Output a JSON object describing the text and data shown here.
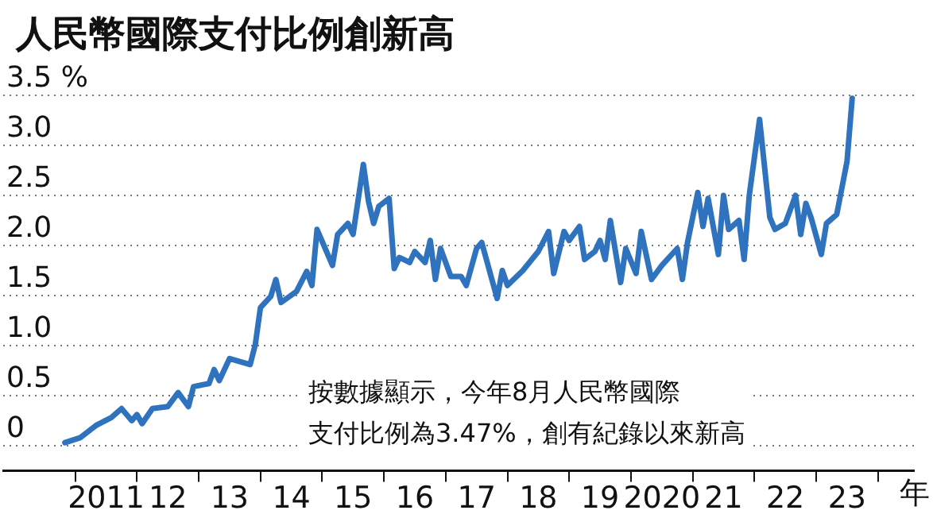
{
  "chart_data": {
    "type": "line",
    "title": "人民幣國際支付比例創新高",
    "xlabel": "年",
    "annotations": [
      "按數據顯示，今年8月人民幣國際",
      "支付比例為3.47%，創有紀錄以來新高"
    ],
    "x": [
      "2010-11",
      "2011-02",
      "2011-05",
      "2011-08",
      "2011-10",
      "2011-12",
      "2012-01",
      "2012-02",
      "2012-04",
      "2012-07",
      "2012-09",
      "2012-11",
      "2012-12",
      "2013-03",
      "2013-04",
      "2013-05",
      "2013-07",
      "2013-09",
      "2013-11",
      "2013-12",
      "2014-01",
      "2014-03",
      "2014-04",
      "2014-05",
      "2014-08",
      "2014-10",
      "2014-11",
      "2014-12",
      "2015-03",
      "2015-04",
      "2015-06",
      "2015-07",
      "2015-09",
      "2015-10",
      "2015-11",
      "2015-12",
      "2016-02",
      "2016-03",
      "2016-04",
      "2016-06",
      "2016-07",
      "2016-09",
      "2016-10",
      "2016-11",
      "2016-12",
      "2017-02",
      "2017-04",
      "2017-05",
      "2017-07",
      "2017-08",
      "2017-11",
      "2017-12",
      "2018-01",
      "2018-04",
      "2018-07",
      "2018-09",
      "2018-10",
      "2018-12",
      "2019-01",
      "2019-03",
      "2019-04",
      "2019-06",
      "2019-07",
      "2019-08",
      "2019-09",
      "2019-11",
      "2019-12",
      "2020-02",
      "2020-03",
      "2020-05",
      "2020-07",
      "2020-10",
      "2020-11",
      "2020-12",
      "2021-02",
      "2021-03",
      "2021-04",
      "2021-06",
      "2021-07",
      "2021-08",
      "2021-10",
      "2021-11",
      "2021-12",
      "2022-02",
      "2022-04",
      "2022-05",
      "2022-07",
      "2022-09",
      "2022-10",
      "2022-11",
      "2022-12",
      "2023-02",
      "2023-03",
      "2023-05",
      "2023-07",
      "2023-08"
    ],
    "series": [
      {
        "color": "#2f72be",
        "values": [
          0.03,
          0.08,
          0.2,
          0.28,
          0.37,
          0.25,
          0.31,
          0.22,
          0.37,
          0.39,
          0.53,
          0.39,
          0.59,
          0.62,
          0.76,
          0.65,
          0.87,
          0.84,
          0.81,
          1.01,
          1.38,
          1.49,
          1.66,
          1.43,
          1.54,
          1.74,
          1.6,
          2.16,
          1.8,
          2.11,
          2.22,
          2.11,
          2.81,
          2.44,
          2.22,
          2.39,
          2.47,
          1.77,
          1.88,
          1.83,
          1.94,
          1.83,
          2.05,
          1.66,
          1.97,
          1.69,
          1.69,
          1.6,
          1.97,
          2.03,
          1.47,
          1.75,
          1.6,
          1.75,
          1.94,
          2.14,
          1.72,
          2.14,
          2.05,
          2.19,
          1.86,
          1.94,
          2.05,
          1.86,
          2.25,
          1.63,
          1.97,
          1.72,
          2.14,
          1.66,
          1.8,
          1.97,
          1.66,
          2.03,
          2.53,
          2.19,
          2.47,
          1.91,
          2.5,
          2.16,
          2.25,
          1.86,
          2.5,
          3.26,
          2.28,
          2.16,
          2.22,
          2.5,
          2.11,
          2.42,
          2.28,
          1.91,
          2.22,
          2.31,
          2.84,
          3.47
        ]
      }
    ],
    "xlim": [
      "2009-11",
      "2024-08"
    ],
    "xticks": [
      {
        "value": "2011-01",
        "label": null
      },
      {
        "value": "2011-07",
        "label": "2011"
      },
      {
        "value": "2012-01",
        "label": null
      },
      {
        "value": "2012-07",
        "label": "12"
      },
      {
        "value": "2013-01",
        "label": null
      },
      {
        "value": "2013-07",
        "label": "13"
      },
      {
        "value": "2014-01",
        "label": null
      },
      {
        "value": "2014-07",
        "label": "14"
      },
      {
        "value": "2015-01",
        "label": null
      },
      {
        "value": "2015-07",
        "label": "15"
      },
      {
        "value": "2016-01",
        "label": null
      },
      {
        "value": "2016-07",
        "label": "16"
      },
      {
        "value": "2017-01",
        "label": null
      },
      {
        "value": "2017-07",
        "label": "17"
      },
      {
        "value": "2018-01",
        "label": null
      },
      {
        "value": "2018-07",
        "label": "18"
      },
      {
        "value": "2019-01",
        "label": null
      },
      {
        "value": "2019-07",
        "label": "19"
      },
      {
        "value": "2020-01",
        "label": null
      },
      {
        "value": "2020-07",
        "label": "2020"
      },
      {
        "value": "2021-01",
        "label": null
      },
      {
        "value": "2021-07",
        "label": "21"
      },
      {
        "value": "2022-01",
        "label": null
      },
      {
        "value": "2022-07",
        "label": "22"
      },
      {
        "value": "2023-01",
        "label": null
      },
      {
        "value": "2023-07",
        "label": "23"
      },
      {
        "value": "2024-01",
        "label": null
      }
    ],
    "ylim": [
      -0.25,
      3.5
    ],
    "yticks": [
      0,
      {
        "value": 0.5,
        "label": "0.5"
      },
      {
        "value": 1,
        "label": "1.0"
      },
      {
        "value": 1.5,
        "label": "1.5"
      },
      {
        "value": 2,
        "label": "2.0"
      },
      {
        "value": 2.5,
        "label": "2.5"
      },
      {
        "value": 3,
        "label": "3.0"
      },
      {
        "value": 3.5,
        "label": "3.5 %"
      }
    ],
    "grid": "y",
    "legend": false,
    "marker": "none",
    "line_style": "solid"
  }
}
